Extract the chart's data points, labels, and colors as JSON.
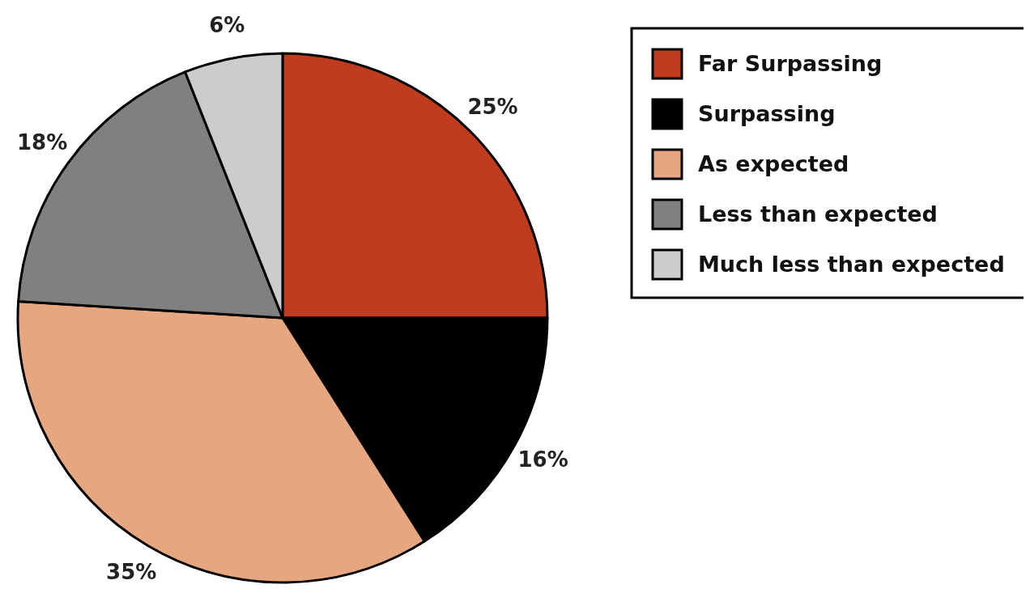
{
  "chart_data": {
    "type": "pie",
    "categories": [
      "Far Surpassing",
      "Surpassing",
      "As expected",
      "Less than expected",
      "Much less than expected"
    ],
    "values": [
      25,
      16,
      35,
      18,
      6
    ],
    "colors": [
      "#c03c1e",
      "#000000",
      "#e5a680",
      "#808080",
      "#cccccc"
    ],
    "value_labels": [
      "25%",
      "16%",
      "35%",
      "18%",
      "6%"
    ],
    "legend": "top right"
  }
}
